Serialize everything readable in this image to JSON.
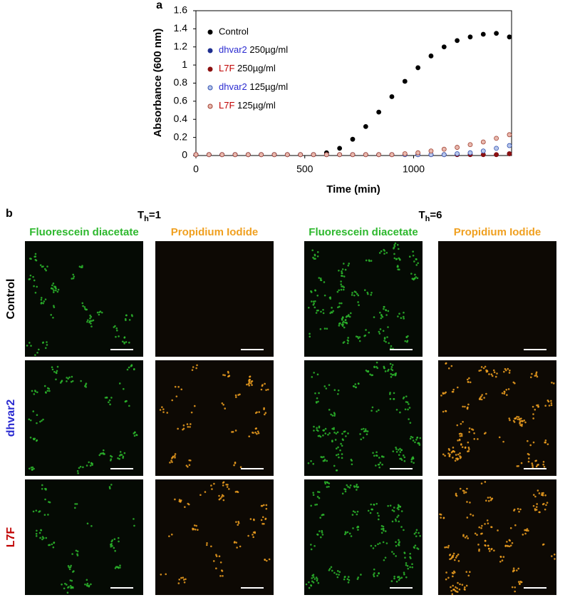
{
  "chart_data": {
    "type": "scatter",
    "panel_label": "a",
    "xlabel": "Time (min)",
    "ylabel": "Absorbance (600 nm)",
    "xlim": [
      0,
      1450
    ],
    "xticks": [
      0,
      500,
      1000
    ],
    "ylim": [
      0,
      1.6
    ],
    "yticks": [
      0,
      0.2,
      0.4,
      0.6,
      0.8,
      1,
      1.2,
      1.4,
      1.6
    ],
    "legend": "upper left",
    "x": [
      0,
      60,
      120,
      180,
      240,
      300,
      360,
      420,
      480,
      540,
      600,
      660,
      720,
      780,
      840,
      900,
      960,
      1020,
      1080,
      1140,
      1200,
      1260,
      1320,
      1380,
      1440
    ],
    "series": [
      {
        "name": "Control",
        "color": "#000000",
        "label_color": "#000000",
        "values": [
          0.01,
          0.01,
          0.01,
          0.01,
          0.01,
          0.01,
          0.01,
          0.01,
          0.01,
          0.01,
          0.03,
          0.08,
          0.18,
          0.32,
          0.48,
          0.65,
          0.82,
          0.97,
          1.1,
          1.2,
          1.27,
          1.31,
          1.34,
          1.35,
          1.31
        ]
      },
      {
        "name": "dhvar2 250µg/ml",
        "color": "#1f2f8f",
        "label_color": "#2a2ad0",
        "values": [
          0.01,
          0.01,
          0.01,
          0.01,
          0.01,
          0.01,
          0.01,
          0.01,
          0.01,
          0.01,
          0.01,
          0.01,
          0.01,
          0.01,
          0.01,
          0.01,
          0.01,
          0.01,
          0.01,
          0.01,
          0.01,
          0.01,
          0.01,
          0.01,
          0.02
        ]
      },
      {
        "name": "L7F 250µg/ml",
        "color": "#8b1010",
        "label_color": "#c00000",
        "values": [
          0.01,
          0.01,
          0.01,
          0.01,
          0.01,
          0.01,
          0.01,
          0.01,
          0.01,
          0.01,
          0.01,
          0.01,
          0.01,
          0.01,
          0.01,
          0.01,
          0.01,
          0.01,
          0.01,
          0.01,
          0.01,
          0.01,
          0.01,
          0.01,
          0.02
        ]
      },
      {
        "name": "dhvar2 125µg/ml",
        "color": "#b8c6ea",
        "label_color": "#2a2ad0",
        "values": [
          0.01,
          0.01,
          0.01,
          0.01,
          0.01,
          0.01,
          0.01,
          0.01,
          0.01,
          0.01,
          0.01,
          0.01,
          0.01,
          0.01,
          0.01,
          0.01,
          0.01,
          0.01,
          0.01,
          0.01,
          0.02,
          0.03,
          0.05,
          0.08,
          0.11
        ]
      },
      {
        "name": "L7F 125µg/ml",
        "color": "#e8b8ae",
        "label_color": "#c00000",
        "values": [
          0.01,
          0.01,
          0.01,
          0.01,
          0.01,
          0.01,
          0.01,
          0.01,
          0.01,
          0.01,
          0.01,
          0.01,
          0.01,
          0.01,
          0.01,
          0.01,
          0.02,
          0.03,
          0.05,
          0.07,
          0.09,
          0.12,
          0.15,
          0.19,
          0.23
        ]
      }
    ]
  },
  "micrographs": {
    "panel_label": "b",
    "groups": [
      {
        "base": "T",
        "sub": "h",
        "tail": "=1"
      },
      {
        "base": "T",
        "sub": "h",
        "tail": "=6"
      }
    ],
    "stains": [
      {
        "name": "Fluorescein diacetate",
        "color": "#2db82d"
      },
      {
        "name": "Propidium Iodide",
        "color": "#f0a020"
      }
    ],
    "rows": [
      {
        "name": "Control",
        "color": "#000000"
      },
      {
        "name": "dhvar2",
        "color": "#2a2ad0"
      },
      {
        "name": "L7F",
        "color": "#c00000"
      }
    ]
  }
}
